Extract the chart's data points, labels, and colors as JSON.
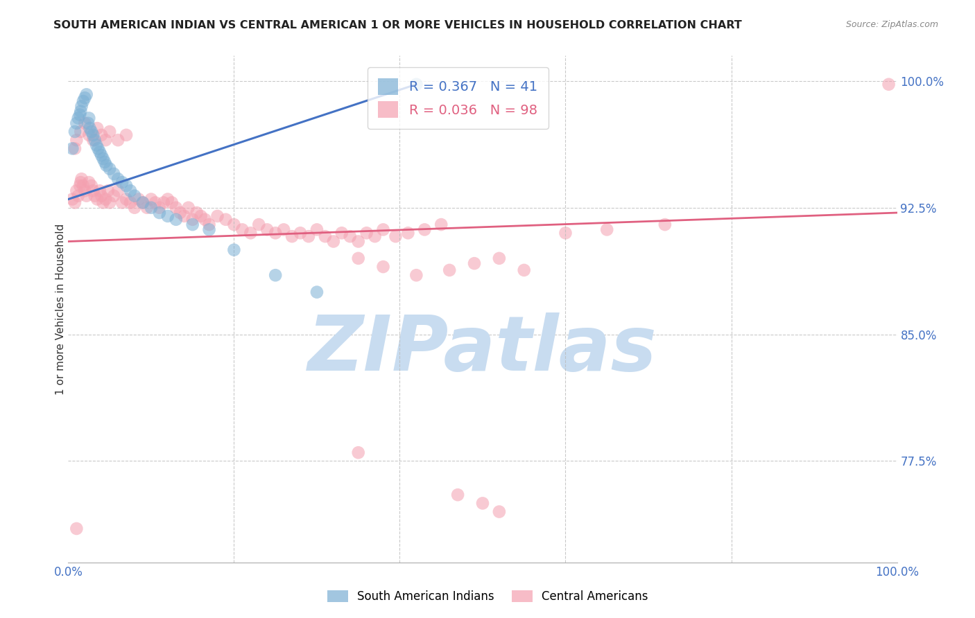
{
  "title": "SOUTH AMERICAN INDIAN VS CENTRAL AMERICAN 1 OR MORE VEHICLES IN HOUSEHOLD CORRELATION CHART",
  "source": "Source: ZipAtlas.com",
  "ylabel": "1 or more Vehicles in Household",
  "xlim": [
    0.0,
    1.0
  ],
  "ylim": [
    0.715,
    1.015
  ],
  "yticks": [
    0.775,
    0.85,
    0.925,
    1.0
  ],
  "ytick_labels": [
    "77.5%",
    "85.0%",
    "92.5%",
    "100.0%"
  ],
  "blue_R": 0.367,
  "blue_N": 41,
  "pink_R": 0.036,
  "pink_N": 98,
  "blue_color": "#7BAFD4",
  "pink_color": "#F4A0B0",
  "blue_line_color": "#4472C4",
  "pink_line_color": "#E06080",
  "watermark": "ZIPatlas",
  "watermark_color": "#C8DCF0",
  "legend_blue_label": "South American Indians",
  "legend_pink_label": "Central Americans",
  "blue_x": [
    0.005,
    0.008,
    0.01,
    0.012,
    0.014,
    0.015,
    0.016,
    0.018,
    0.02,
    0.022,
    0.024,
    0.025,
    0.026,
    0.028,
    0.03,
    0.032,
    0.034,
    0.036,
    0.038,
    0.04,
    0.042,
    0.044,
    0.046,
    0.05,
    0.055,
    0.06,
    0.065,
    0.07,
    0.075,
    0.08,
    0.09,
    0.1,
    0.11,
    0.12,
    0.13,
    0.15,
    0.17,
    0.2,
    0.25,
    0.3,
    0.42
  ],
  "blue_y": [
    0.96,
    0.97,
    0.975,
    0.978,
    0.98,
    0.982,
    0.985,
    0.988,
    0.99,
    0.992,
    0.975,
    0.978,
    0.972,
    0.97,
    0.968,
    0.965,
    0.962,
    0.96,
    0.958,
    0.956,
    0.954,
    0.952,
    0.95,
    0.948,
    0.945,
    0.942,
    0.94,
    0.938,
    0.935,
    0.932,
    0.928,
    0.925,
    0.922,
    0.92,
    0.918,
    0.915,
    0.912,
    0.9,
    0.885,
    0.875,
    0.998
  ],
  "pink_x": [
    0.005,
    0.008,
    0.01,
    0.012,
    0.014,
    0.015,
    0.016,
    0.018,
    0.02,
    0.022,
    0.025,
    0.028,
    0.03,
    0.032,
    0.035,
    0.038,
    0.04,
    0.042,
    0.045,
    0.048,
    0.05,
    0.055,
    0.06,
    0.065,
    0.07,
    0.075,
    0.08,
    0.085,
    0.09,
    0.095,
    0.1,
    0.105,
    0.11,
    0.115,
    0.12,
    0.125,
    0.13,
    0.135,
    0.14,
    0.145,
    0.15,
    0.155,
    0.16,
    0.165,
    0.17,
    0.18,
    0.19,
    0.2,
    0.21,
    0.22,
    0.23,
    0.24,
    0.25,
    0.26,
    0.27,
    0.28,
    0.29,
    0.3,
    0.31,
    0.32,
    0.33,
    0.34,
    0.35,
    0.36,
    0.37,
    0.38,
    0.395,
    0.41,
    0.43,
    0.45,
    0.35,
    0.38,
    0.42,
    0.46,
    0.49,
    0.52,
    0.55,
    0.6,
    0.65,
    0.72,
    0.008,
    0.01,
    0.015,
    0.02,
    0.025,
    0.03,
    0.035,
    0.04,
    0.045,
    0.05,
    0.06,
    0.07,
    0.35,
    0.47,
    0.5,
    0.52,
    0.99,
    0.01
  ],
  "pink_y": [
    0.93,
    0.928,
    0.935,
    0.932,
    0.938,
    0.94,
    0.942,
    0.938,
    0.935,
    0.932,
    0.94,
    0.938,
    0.935,
    0.932,
    0.93,
    0.935,
    0.932,
    0.928,
    0.93,
    0.935,
    0.928,
    0.932,
    0.935,
    0.928,
    0.93,
    0.928,
    0.925,
    0.93,
    0.928,
    0.925,
    0.93,
    0.928,
    0.925,
    0.928,
    0.93,
    0.928,
    0.925,
    0.922,
    0.92,
    0.925,
    0.918,
    0.922,
    0.92,
    0.918,
    0.915,
    0.92,
    0.918,
    0.915,
    0.912,
    0.91,
    0.915,
    0.912,
    0.91,
    0.912,
    0.908,
    0.91,
    0.908,
    0.912,
    0.908,
    0.905,
    0.91,
    0.908,
    0.905,
    0.91,
    0.908,
    0.912,
    0.908,
    0.91,
    0.912,
    0.915,
    0.895,
    0.89,
    0.885,
    0.888,
    0.892,
    0.895,
    0.888,
    0.91,
    0.912,
    0.915,
    0.96,
    0.965,
    0.97,
    0.975,
    0.968,
    0.965,
    0.972,
    0.968,
    0.965,
    0.97,
    0.965,
    0.968,
    0.78,
    0.755,
    0.75,
    0.745,
    0.998,
    0.735
  ],
  "blue_line_x": [
    0.0,
    0.42
  ],
  "blue_line_y": [
    0.93,
    0.998
  ],
  "pink_line_x": [
    0.0,
    1.0
  ],
  "pink_line_y": [
    0.905,
    0.922
  ]
}
